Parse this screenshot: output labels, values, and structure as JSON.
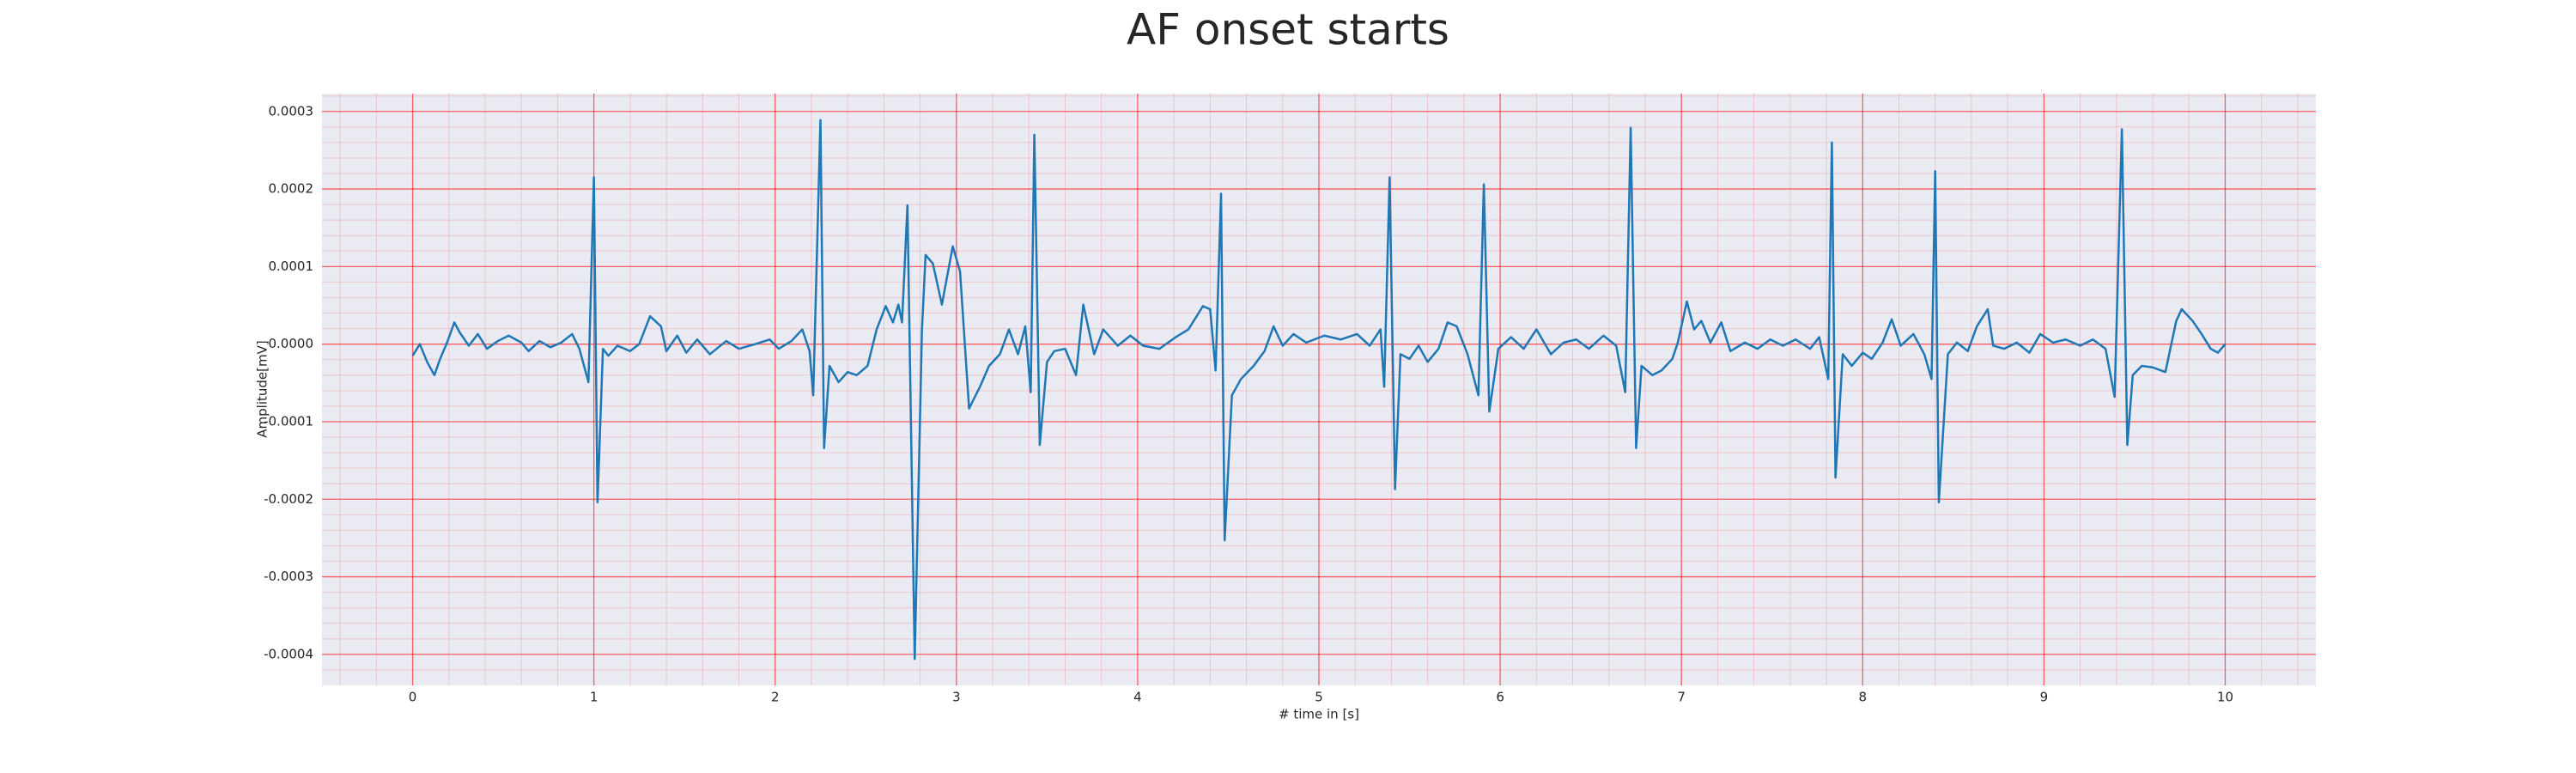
{
  "chart_data": {
    "type": "line",
    "title": "AF onset starts",
    "xlabel": "# time in [s]",
    "ylabel": "Amplitude[mV]",
    "x": [
      0,
      0.04,
      0.08,
      0.12,
      0.15,
      0.19,
      0.23,
      0.26,
      0.31,
      0.36,
      0.41,
      0.47,
      0.53,
      0.6,
      0.64,
      0.7,
      0.76,
      0.82,
      0.88,
      0.92,
      0.97,
      1.0,
      1.02,
      1.05,
      1.08,
      1.13,
      1.2,
      1.25,
      1.31,
      1.37,
      1.4,
      1.46,
      1.51,
      1.57,
      1.64,
      1.73,
      1.8,
      1.89,
      1.97,
      2.02,
      2.09,
      2.15,
      2.19,
      2.21,
      2.25,
      2.27,
      2.3,
      2.35,
      2.4,
      2.45,
      2.51,
      2.56,
      2.61,
      2.65,
      2.68,
      2.7,
      2.73,
      2.77,
      2.81,
      2.83,
      2.87,
      2.92,
      2.98,
      3.02,
      3.07,
      3.13,
      3.18,
      3.24,
      3.29,
      3.34,
      3.38,
      3.41,
      3.43,
      3.46,
      3.5,
      3.54,
      3.6,
      3.66,
      3.7,
      3.76,
      3.81,
      3.89,
      3.96,
      4.03,
      4.12,
      4.21,
      4.28,
      4.36,
      4.4,
      4.43,
      4.46,
      4.48,
      4.52,
      4.57,
      4.64,
      4.7,
      4.75,
      4.8,
      4.86,
      4.93,
      5.03,
      5.12,
      5.21,
      5.28,
      5.34,
      5.36,
      5.39,
      5.42,
      5.45,
      5.5,
      5.55,
      5.6,
      5.66,
      5.71,
      5.76,
      5.82,
      5.88,
      5.91,
      5.94,
      5.99,
      6.06,
      6.13,
      6.2,
      6.28,
      6.35,
      6.42,
      6.49,
      6.57,
      6.64,
      6.69,
      6.72,
      6.75,
      6.78,
      6.84,
      6.89,
      6.95,
      6.98,
      7.03,
      7.07,
      7.11,
      7.16,
      7.22,
      7.27,
      7.35,
      7.42,
      7.49,
      7.56,
      7.63,
      7.71,
      7.76,
      7.81,
      7.83,
      7.85,
      7.89,
      7.94,
      8.0,
      8.05,
      8.11,
      8.16,
      8.21,
      8.28,
      8.34,
      8.38,
      8.4,
      8.42,
      8.47,
      8.52,
      8.58,
      8.63,
      8.69,
      8.72,
      8.78,
      8.85,
      8.92,
      8.98,
      9.05,
      9.12,
      9.2,
      9.27,
      9.34,
      9.39,
      9.43,
      9.46,
      9.49,
      9.54,
      9.6,
      9.67,
      9.73,
      9.76,
      9.82,
      9.87,
      9.92,
      9.96,
      10.0
    ],
    "series": [
      {
        "name": "ECG",
        "color": "#1f77b4",
        "values": [
          -1.5e-05,
          0,
          -2.3e-05,
          -4e-05,
          -2e-05,
          2e-06,
          2.8e-05,
          1.5e-05,
          -2e-06,
          1.3e-05,
          -6e-06,
          4e-06,
          1.1e-05,
          2e-06,
          -9e-06,
          4e-06,
          -4e-06,
          2e-06,
          1.3e-05,
          -6e-06,
          -4.9e-05,
          0.000215,
          -0.000204,
          -6e-06,
          -1.5e-05,
          -2e-06,
          -9e-06,
          0,
          3.6e-05,
          2.3e-05,
          -9e-06,
          1.1e-05,
          -1.1e-05,
          6e-06,
          -1.3e-05,
          4e-06,
          -6e-06,
          0,
          6e-06,
          -6e-06,
          4e-06,
          1.9e-05,
          -9e-06,
          -6.6e-05,
          0.000289,
          -0.000134,
          -2.8e-05,
          -4.9e-05,
          -3.6e-05,
          -4e-05,
          -2.8e-05,
          1.9e-05,
          4.9e-05,
          2.8e-05,
          5.1e-05,
          2.8e-05,
          0.000179,
          -0.000406,
          1.9e-05,
          0.000115,
          0.000104,
          5.1e-05,
          0.000126,
          9.4e-05,
          -8.3e-05,
          -5.5e-05,
          -2.8e-05,
          -1.3e-05,
          1.9e-05,
          -1.3e-05,
          2.3e-05,
          -6.2e-05,
          0.00027,
          -0.00013,
          -2.3e-05,
          -9e-06,
          -6e-06,
          -4e-05,
          5.1e-05,
          -1.3e-05,
          1.9e-05,
          -2e-06,
          1.1e-05,
          -2e-06,
          -6e-06,
          9e-06,
          1.9e-05,
          4.9e-05,
          4.5e-05,
          -3.4e-05,
          0.000194,
          -0.000253,
          -6.6e-05,
          -4.5e-05,
          -2.8e-05,
          -9e-06,
          2.3e-05,
          -2e-06,
          1.3e-05,
          2e-06,
          1.1e-05,
          6e-06,
          1.3e-05,
          -2e-06,
          1.9e-05,
          -5.5e-05,
          0.000215,
          -0.000187,
          -1.3e-05,
          -1.9e-05,
          -2e-06,
          -2.3e-05,
          -6e-06,
          2.8e-05,
          2.3e-05,
          -1.3e-05,
          -6.6e-05,
          0.000206,
          -8.7e-05,
          -6e-06,
          9e-06,
          -6e-06,
          1.9e-05,
          -1.3e-05,
          2e-06,
          6e-06,
          -6e-06,
          1.1e-05,
          -2e-06,
          -6.2e-05,
          0.000279,
          -0.000134,
          -2.8e-05,
          -4e-05,
          -3.4e-05,
          -1.9e-05,
          2e-06,
          5.5e-05,
          1.9e-05,
          3e-05,
          2e-06,
          2.8e-05,
          -9e-06,
          2e-06,
          -6e-06,
          6e-06,
          -2e-06,
          6e-06,
          -6e-06,
          9e-06,
          -4.5e-05,
          0.00026,
          -0.000172,
          -1.3e-05,
          -2.8e-05,
          -1.1e-05,
          -1.9e-05,
          2e-06,
          3.2e-05,
          -2e-06,
          1.3e-05,
          -1.3e-05,
          -4.5e-05,
          0.000223,
          -0.000204,
          -1.3e-05,
          2e-06,
          -9e-06,
          2.3e-05,
          4.5e-05,
          -2e-06,
          -6e-06,
          2e-06,
          -1.1e-05,
          1.3e-05,
          2e-06,
          6e-06,
          -2e-06,
          6e-06,
          -6e-06,
          -6.8e-05,
          0.000277,
          -0.00013,
          -4e-05,
          -2.8e-05,
          -3e-05,
          -3.6e-05,
          3e-05,
          4.5e-05,
          3e-05,
          1.3e-05,
          -6e-06,
          -1.1e-05,
          0
        ]
      }
    ],
    "xlim": [
      -0.5,
      10.5
    ],
    "ylim": [
      -0.00044,
      0.000323
    ],
    "xticks": [
      0,
      1,
      2,
      3,
      4,
      5,
      6,
      7,
      8,
      9,
      10
    ],
    "yticks": [
      -0.0004,
      -0.0003,
      -0.0002,
      -0.0001,
      {
        "value": 0,
        "label": "0.0000"
      },
      0.0001,
      0.0002,
      0.0003
    ],
    "grid": true,
    "minor_grid_divisions": 5,
    "background": "#eaeaf2",
    "grid_color": "#ff0000"
  }
}
